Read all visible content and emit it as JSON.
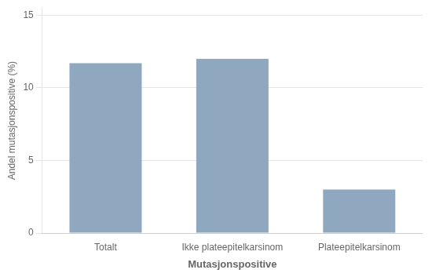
{
  "chart_data": {
    "type": "bar",
    "categories": [
      "Totalt",
      "Ikke plateepitelkarsinom",
      "Plateepitelkarsinom"
    ],
    "values": [
      11.7,
      12.0,
      3.0
    ],
    "color": "#8fa8bf",
    "xlabel": "Mutasjonspositive",
    "ylabel": "Andel mutasjonspositive (%)",
    "ylim": [
      0,
      15.5
    ],
    "yticks": [
      0,
      5,
      10,
      15
    ],
    "grid": true
  }
}
